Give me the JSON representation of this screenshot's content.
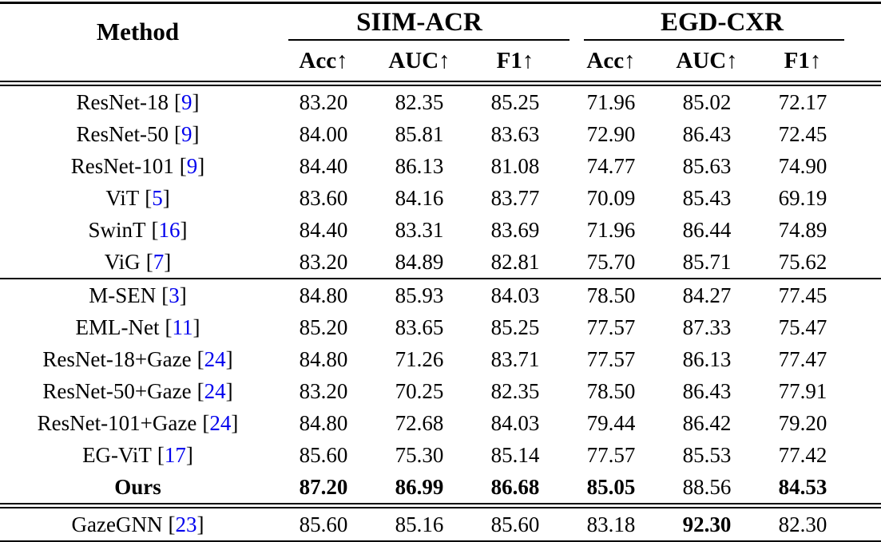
{
  "table": {
    "method_header": "Method",
    "cite_open": "[",
    "cite_close": "]",
    "citation_color": "#0000EE",
    "groups": [
      {
        "label": "SIIM-ACR"
      },
      {
        "label": "EGD-CXR"
      }
    ],
    "metric_headers": [
      "Acc↑",
      "AUC↑",
      "F1↑",
      "Acc↑",
      "AUC↑",
      "F1↑"
    ],
    "rows": [
      {
        "method": "ResNet-18",
        "cite": "9",
        "values": [
          "83.20",
          "82.35",
          "85.25",
          "71.96",
          "85.02",
          "72.17"
        ]
      },
      {
        "method": "ResNet-50",
        "cite": "9",
        "values": [
          "84.00",
          "85.81",
          "83.63",
          "72.90",
          "86.43",
          "72.45"
        ]
      },
      {
        "method": "ResNet-101",
        "cite": "9",
        "values": [
          "84.40",
          "86.13",
          "81.08",
          "74.77",
          "85.63",
          "74.90"
        ]
      },
      {
        "method": "ViT",
        "cite": "5",
        "values": [
          "83.60",
          "84.16",
          "83.77",
          "70.09",
          "85.43",
          "69.19"
        ]
      },
      {
        "method": "SwinT",
        "cite": "16",
        "values": [
          "84.40",
          "83.31",
          "83.69",
          "71.96",
          "86.44",
          "74.89"
        ]
      },
      {
        "method": "ViG",
        "cite": "7",
        "values": [
          "83.20",
          "84.89",
          "82.81",
          "75.70",
          "85.71",
          "75.62"
        ]
      },
      {
        "method": "M-SEN",
        "cite": "3",
        "values": [
          "84.80",
          "85.93",
          "84.03",
          "78.50",
          "84.27",
          "77.45"
        ]
      },
      {
        "method": "EML-Net",
        "cite": "11",
        "values": [
          "85.20",
          "83.65",
          "85.25",
          "77.57",
          "87.33",
          "75.47"
        ]
      },
      {
        "method": "ResNet-18+Gaze",
        "cite": "24",
        "values": [
          "84.80",
          "71.26",
          "83.71",
          "77.57",
          "86.13",
          "77.47"
        ]
      },
      {
        "method": "ResNet-50+Gaze",
        "cite": "24",
        "values": [
          "83.20",
          "70.25",
          "82.35",
          "78.50",
          "86.43",
          "77.91"
        ]
      },
      {
        "method": "ResNet-101+Gaze",
        "cite": "24",
        "values": [
          "84.80",
          "72.68",
          "84.03",
          "79.44",
          "86.42",
          "79.20"
        ]
      },
      {
        "method": "EG-ViT",
        "cite": "17",
        "values": [
          "85.60",
          "75.30",
          "85.14",
          "77.57",
          "85.53",
          "77.42"
        ]
      },
      {
        "method": "Ours",
        "values": [
          "87.20",
          "86.99",
          "86.68",
          "85.05",
          "88.56",
          "84.53"
        ]
      },
      {
        "method": "GazeGNN",
        "cite": "23",
        "values": [
          "85.60",
          "85.16",
          "85.60",
          "83.18",
          "92.30",
          "82.30"
        ]
      }
    ]
  }
}
